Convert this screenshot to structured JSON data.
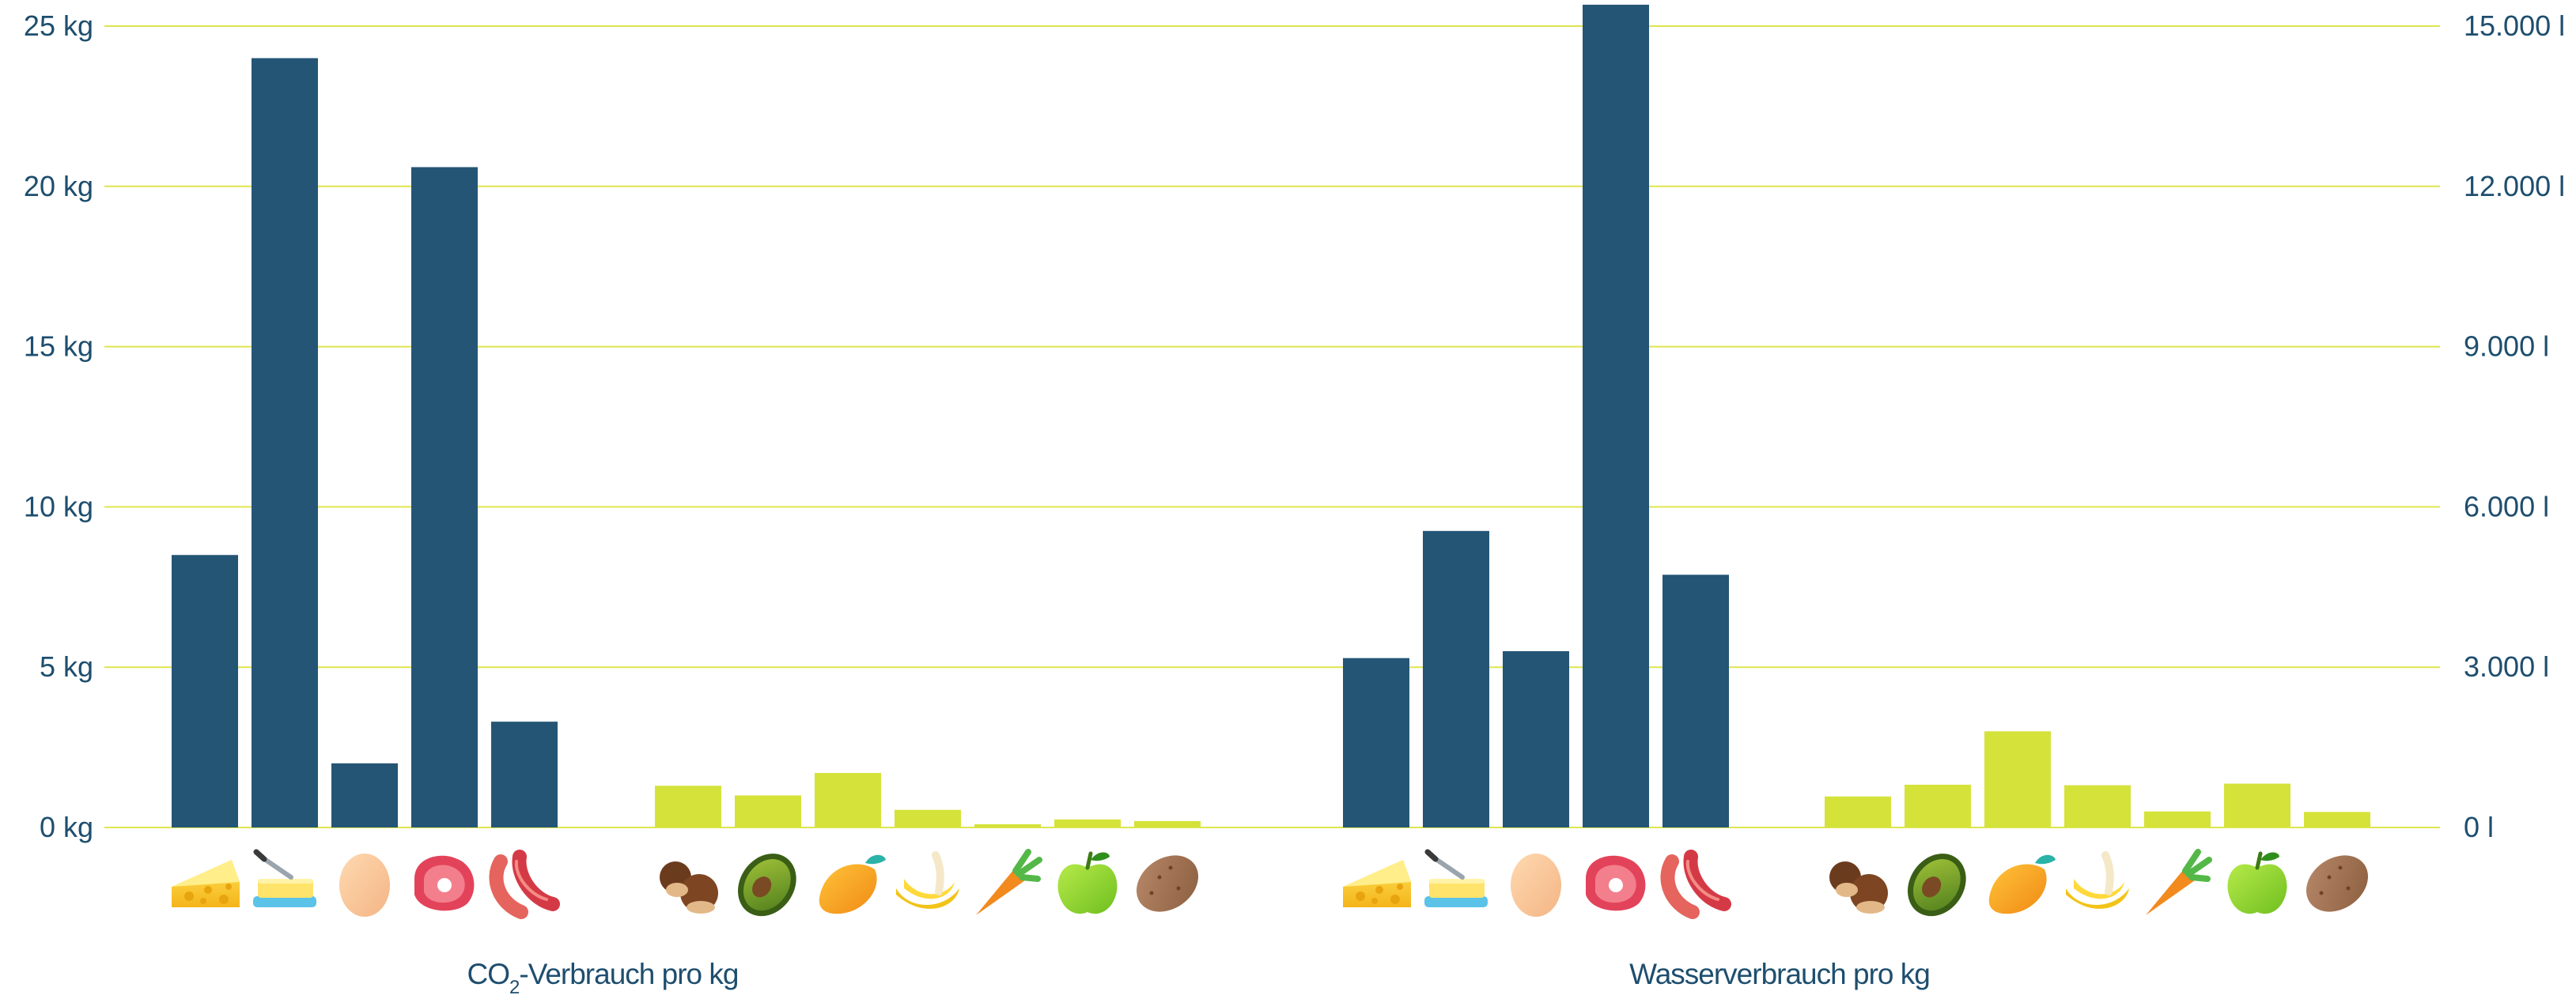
{
  "colors": {
    "animal": "#255575",
    "plant": "#d5e23a",
    "grid": "#dde54f",
    "text": "#1e4e6e"
  },
  "category_icons": [
    "cheese-icon",
    "butter-icon",
    "egg-icon",
    "beef-icon",
    "sausage-icon",
    "chestnut-icon",
    "avocado-icon",
    "mango-icon",
    "banana-icon",
    "carrot-icon",
    "apple-icon",
    "potato-icon"
  ],
  "chart_data": [
    {
      "type": "bar",
      "axis": "left",
      "xlabel": {
        "prefix": "CO",
        "sub": "2",
        "suffix": "-Verbrauch pro kg"
      },
      "ylim": [
        0,
        25
      ],
      "yticks": [
        0,
        5,
        10,
        15,
        20,
        25
      ],
      "ytick_labels": [
        "0 kg",
        "5 kg",
        "10 kg",
        "15 kg",
        "20 kg",
        "25 kg"
      ],
      "grid": true,
      "categories": [
        "cheese-icon",
        "butter-icon",
        "egg-icon",
        "beef-icon",
        "sausage-icon",
        "chestnut-icon",
        "avocado-icon",
        "mango-icon",
        "banana-icon",
        "carrot-icon",
        "apple-icon",
        "potato-icon"
      ],
      "groups": [
        "animal",
        "animal",
        "animal",
        "animal",
        "animal",
        "plant",
        "plant",
        "plant",
        "plant",
        "plant",
        "plant",
        "plant"
      ],
      "values": [
        8.5,
        24.0,
        2.0,
        20.6,
        3.3,
        1.3,
        1.0,
        1.7,
        0.55,
        0.1,
        0.25,
        0.2
      ]
    },
    {
      "type": "bar",
      "axis": "right",
      "xlabel": "Wasserverbrauch pro kg",
      "ylim": [
        0,
        15000
      ],
      "yticks": [
        0,
        3000,
        6000,
        9000,
        12000,
        15000
      ],
      "ytick_labels": [
        "0 l",
        "3.000 l",
        "6.000 l",
        "9.000 l",
        "12.000 l",
        "15.000 l"
      ],
      "grid": true,
      "categories": [
        "cheese-icon",
        "butter-icon",
        "egg-icon",
        "beef-icon",
        "sausage-icon",
        "chestnut-icon",
        "avocado-icon",
        "mango-icon",
        "banana-icon",
        "carrot-icon",
        "apple-icon",
        "potato-icon"
      ],
      "groups": [
        "animal",
        "animal",
        "animal",
        "animal",
        "animal",
        "plant",
        "plant",
        "plant",
        "plant",
        "plant",
        "plant",
        "plant"
      ],
      "values": [
        3170,
        5550,
        3300,
        15400,
        4730,
        580,
        800,
        1800,
        790,
        300,
        820,
        290
      ]
    }
  ]
}
